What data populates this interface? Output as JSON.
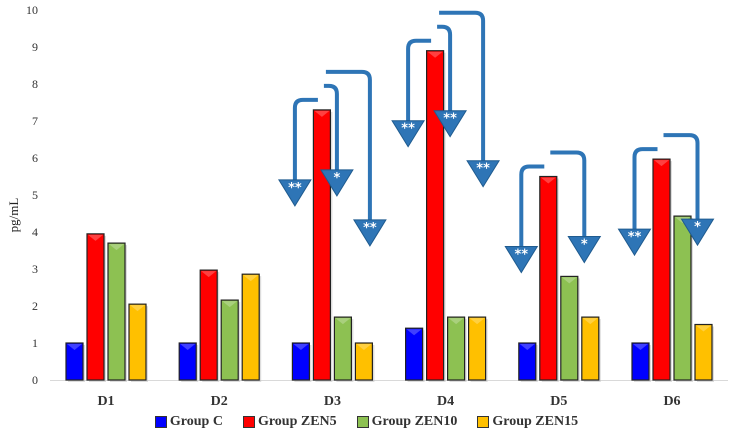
{
  "chart_data": {
    "type": "bar",
    "title": "",
    "xlabel": "",
    "ylabel": "pg/mL",
    "ylim": [
      0,
      10
    ],
    "yticks": [
      0,
      1,
      2,
      3,
      4,
      5,
      6,
      7,
      8,
      9,
      10
    ],
    "grid": false,
    "legend_position": "bottom",
    "categories": [
      "D1",
      "D2",
      "D3",
      "D4",
      "D5",
      "D6"
    ],
    "series": [
      {
        "name": "Group C",
        "color": "#0000FF",
        "values": [
          1.0,
          1.0,
          1.0,
          1.4,
          1.0,
          1.0
        ]
      },
      {
        "name": "Group ZEN5",
        "color": "#FF0000",
        "values": [
          3.95,
          2.97,
          7.3,
          8.9,
          5.5,
          5.97
        ]
      },
      {
        "name": "Group ZEN10",
        "color": "#8DC152",
        "values": [
          3.7,
          2.16,
          1.7,
          1.7,
          2.8,
          4.43
        ]
      },
      {
        "name": "Group ZEN15",
        "color": "#FFC000",
        "values": [
          2.05,
          2.86,
          1.0,
          1.7,
          1.7,
          1.5
        ]
      }
    ],
    "annotations": [
      {
        "category": "D3",
        "from": "Group ZEN5",
        "to": "Group C",
        "label": "**"
      },
      {
        "category": "D3",
        "from": "Group ZEN5",
        "to": "Group ZEN10",
        "label": "*"
      },
      {
        "category": "D3",
        "from": "Group ZEN5",
        "to": "Group ZEN15",
        "label": "**"
      },
      {
        "category": "D4",
        "from": "Group ZEN5",
        "to": "Group C",
        "label": "**"
      },
      {
        "category": "D4",
        "from": "Group ZEN5",
        "to": "Group ZEN10",
        "label": "**"
      },
      {
        "category": "D4",
        "from": "Group ZEN5",
        "to": "Group ZEN15",
        "label": "**"
      },
      {
        "category": "D5",
        "from": "Group ZEN5",
        "to": "Group C",
        "label": "**"
      },
      {
        "category": "D5",
        "from": "Group ZEN5",
        "to": "Group ZEN15",
        "label": "*"
      },
      {
        "category": "D6",
        "from": "Group ZEN5",
        "to": "Group C",
        "label": "**"
      },
      {
        "category": "D6",
        "from": "Group ZEN5",
        "to": "Group ZEN15",
        "label": "*"
      }
    ],
    "arrow_color": "#2E75B6"
  }
}
